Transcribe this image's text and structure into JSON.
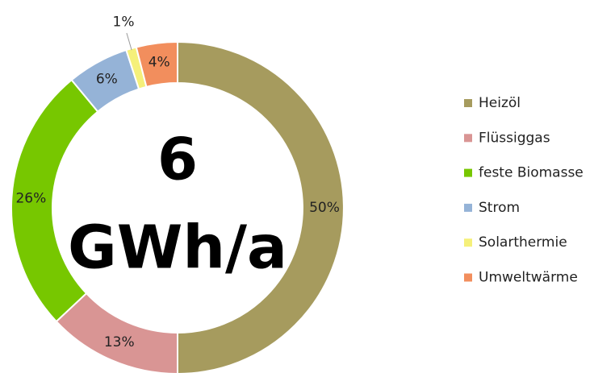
{
  "chart_data": {
    "type": "pie",
    "categories": [
      "Heizöl",
      "Flüssiggas",
      "feste Biomasse",
      "Strom",
      "Solarthermie",
      "Umweltwärme"
    ],
    "values": [
      50,
      13,
      26,
      6,
      1,
      4
    ],
    "value_labels": [
      "50%",
      "13%",
      "26%",
      "6%",
      "1%",
      "4%"
    ],
    "colors": [
      "#a69b5e",
      "#d99594",
      "#77c700",
      "#95b3d7",
      "#f5f07a",
      "#f28e5d"
    ],
    "center_text": [
      "6",
      "GWh/a"
    ],
    "legend": "right"
  }
}
